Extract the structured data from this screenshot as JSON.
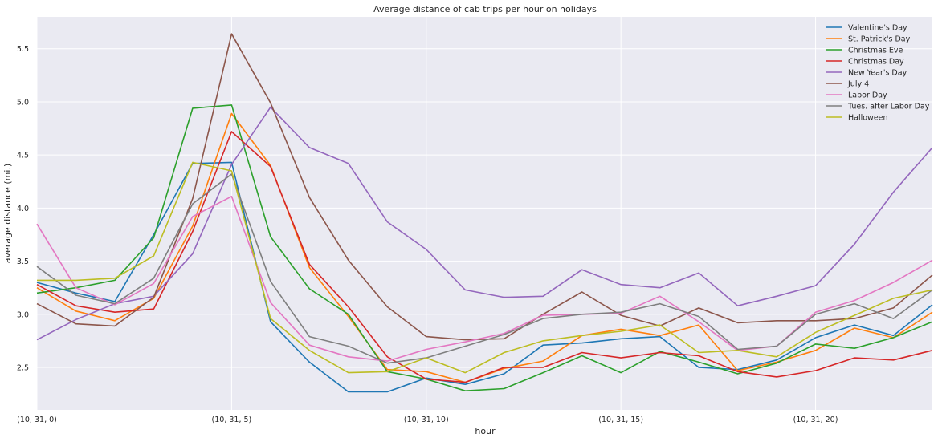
{
  "chart_data": {
    "type": "line",
    "title": "Average distance of cab trips per hour on holidays",
    "xlabel": "hour",
    "ylabel": "average distance (mi.)",
    "x": [
      0,
      1,
      2,
      3,
      4,
      5,
      6,
      7,
      8,
      9,
      10,
      11,
      12,
      13,
      14,
      15,
      16,
      17,
      18,
      19,
      20,
      21,
      22,
      23
    ],
    "xlim": [
      0,
      23
    ],
    "ylim": [
      2.1,
      5.8
    ],
    "x_ticks": [
      0,
      5,
      10,
      15,
      20
    ],
    "x_tick_labels": [
      "(10, 31, 0)",
      "(10, 31, 5)",
      "(10, 31, 10)",
      "(10, 31, 15)",
      "(10, 31, 20)"
    ],
    "y_ticks": [
      2.5,
      3.0,
      3.5,
      4.0,
      4.5,
      5.0,
      5.5
    ],
    "y_tick_labels": [
      "2.5",
      "3.0",
      "3.5",
      "4.0",
      "4.5",
      "5.0",
      "5.5"
    ],
    "grid": true,
    "background": "#eaeaf2",
    "legend_position": "top-right",
    "series": [
      {
        "name": "Valentine's Day",
        "color": "#1f77b4",
        "values": [
          3.3,
          3.2,
          3.12,
          3.75,
          4.42,
          4.43,
          2.93,
          2.55,
          2.27,
          2.27,
          2.4,
          2.34,
          2.44,
          2.71,
          2.73,
          2.77,
          2.79,
          2.5,
          2.48,
          2.57,
          2.78,
          2.9,
          2.8,
          3.09
        ]
      },
      {
        "name": "St. Patrick's Day",
        "color": "#ff7f0e",
        "values": [
          3.25,
          3.03,
          2.94,
          3.15,
          3.83,
          4.89,
          4.4,
          3.44,
          2.98,
          2.48,
          2.46,
          2.36,
          2.49,
          2.56,
          2.8,
          2.86,
          2.8,
          2.9,
          2.47,
          2.55,
          2.66,
          2.87,
          2.78,
          3.02
        ]
      },
      {
        "name": "Christmas Eve",
        "color": "#2ca02c",
        "values": [
          3.2,
          3.25,
          3.32,
          3.72,
          4.94,
          4.97,
          3.73,
          3.24,
          3.0,
          2.46,
          2.39,
          2.28,
          2.3,
          2.45,
          2.61,
          2.45,
          2.65,
          2.55,
          2.44,
          2.54,
          2.72,
          2.68,
          2.78,
          2.93
        ]
      },
      {
        "name": "Christmas Day",
        "color": "#d62728",
        "values": [
          3.28,
          3.08,
          3.02,
          3.05,
          3.78,
          4.72,
          4.39,
          3.47,
          3.07,
          2.6,
          2.39,
          2.36,
          2.5,
          2.5,
          2.64,
          2.59,
          2.64,
          2.61,
          2.46,
          2.41,
          2.47,
          2.59,
          2.57,
          2.66
        ]
      },
      {
        "name": "New Year's Day",
        "color": "#9467bd",
        "values": [
          2.76,
          2.95,
          3.1,
          3.17,
          3.57,
          4.41,
          4.95,
          4.57,
          4.42,
          3.87,
          3.61,
          3.23,
          3.16,
          3.17,
          3.42,
          3.28,
          3.25,
          3.39,
          3.08,
          3.17,
          3.27,
          3.66,
          4.15,
          4.57
        ]
      },
      {
        "name": "July 4",
        "color": "#8c564b",
        "values": [
          3.1,
          2.91,
          2.89,
          3.16,
          4.09,
          5.64,
          4.99,
          4.1,
          3.51,
          3.07,
          2.79,
          2.76,
          2.77,
          3.0,
          3.21,
          2.99,
          2.89,
          3.06,
          2.92,
          2.94,
          2.94,
          2.96,
          3.06,
          3.37
        ]
      },
      {
        "name": "Labor Day",
        "color": "#e377c2",
        "values": [
          3.85,
          3.25,
          3.09,
          3.29,
          3.92,
          4.11,
          3.11,
          2.71,
          2.6,
          2.56,
          2.67,
          2.74,
          2.82,
          2.99,
          3.0,
          3.01,
          3.17,
          2.93,
          2.66,
          2.7,
          3.02,
          3.13,
          3.3,
          3.51
        ]
      },
      {
        "name": "Tues. after Labor Day",
        "color": "#7f7f7f",
        "values": [
          3.45,
          3.18,
          3.1,
          3.34,
          4.04,
          4.32,
          3.31,
          2.79,
          2.7,
          2.54,
          2.59,
          2.7,
          2.81,
          2.96,
          3.0,
          3.02,
          3.1,
          2.98,
          2.67,
          2.7,
          3.0,
          3.1,
          2.96,
          3.23
        ]
      },
      {
        "name": "Halloween",
        "color": "#bcbd22",
        "values": [
          3.32,
          3.32,
          3.34,
          3.55,
          4.43,
          4.35,
          2.96,
          2.66,
          2.45,
          2.46,
          2.59,
          2.45,
          2.64,
          2.75,
          2.8,
          2.84,
          2.9,
          2.64,
          2.66,
          2.6,
          2.83,
          2.99,
          3.15,
          3.23
        ]
      }
    ]
  }
}
